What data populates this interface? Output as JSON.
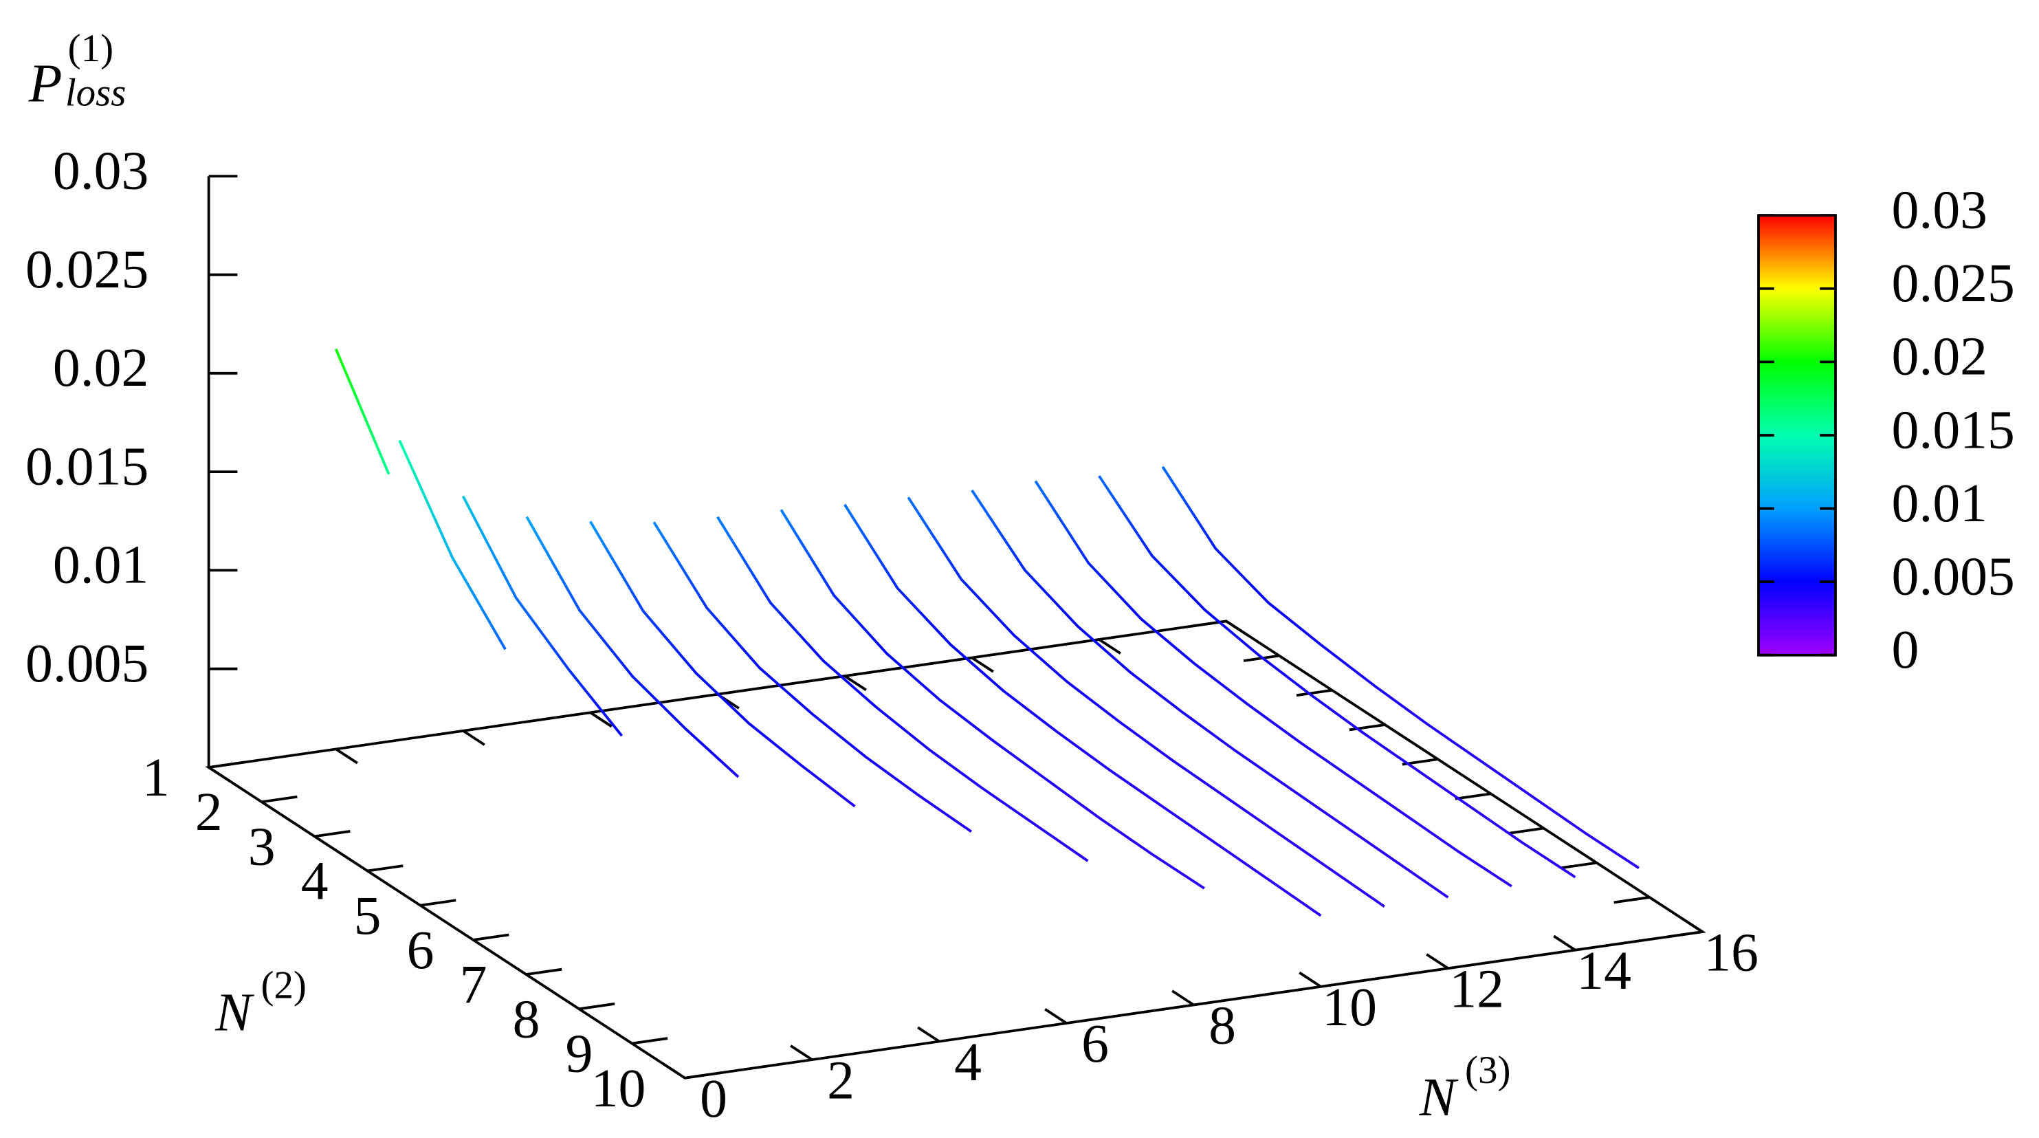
{
  "chart_data": {
    "type": "surface3d",
    "xlabel": {
      "text": "N",
      "sup": "(3)"
    },
    "ylabel": {
      "text": "N",
      "sup": "(2)"
    },
    "zlabel": {
      "text": "P",
      "sub": "loss",
      "sup": "(1)"
    },
    "xlim": [
      0,
      16
    ],
    "xticks": [
      0,
      2,
      4,
      6,
      8,
      10,
      12,
      14,
      16
    ],
    "ylim": [
      1,
      10
    ],
    "yticks": [
      1,
      2,
      3,
      4,
      5,
      6,
      7,
      8,
      9,
      10
    ],
    "zlim": [
      0,
      0.03
    ],
    "zticks": [
      0.005,
      0.01,
      0.015,
      0.02,
      0.025,
      0.03
    ],
    "cblim": [
      0,
      0.03
    ],
    "cbticks": [
      0,
      0.005,
      0.01,
      0.015,
      0.02,
      0.025,
      0.03
    ],
    "palette": [
      "#a000ff",
      "#0000ff",
      "#00a0ff",
      "#00ffb0",
      "#00ff00",
      "#ffff00",
      "#ff0000"
    ],
    "series": [
      {
        "x": 2,
        "y": [
          1,
          2
        ],
        "values": [
          0.0203,
          0.0157
        ]
      },
      {
        "x": 3,
        "y": [
          1,
          2,
          3
        ],
        "values": [
          0.0152,
          0.011,
          0.0081
        ]
      },
      {
        "x": 4,
        "y": [
          1,
          2,
          3,
          4
        ],
        "values": [
          0.0119,
          0.0085,
          0.0066,
          0.005
        ]
      },
      {
        "x": 5,
        "y": [
          1,
          2,
          3,
          4,
          5
        ],
        "values": [
          0.0104,
          0.0074,
          0.0058,
          0.0049,
          0.0042
        ]
      },
      {
        "x": 6,
        "y": [
          1,
          2,
          3,
          4,
          5,
          6
        ],
        "values": [
          0.0097,
          0.0069,
          0.0055,
          0.0047,
          0.0043,
          0.004
        ]
      },
      {
        "x": 7,
        "y": [
          1,
          2,
          3,
          4,
          5,
          6,
          7
        ],
        "values": [
          0.0092,
          0.0066,
          0.0053,
          0.0047,
          0.0043,
          0.0041,
          0.004
        ]
      },
      {
        "x": 8,
        "y": [
          1,
          2,
          3,
          4,
          5,
          6,
          7,
          8
        ],
        "values": [
          0.009,
          0.0064,
          0.0052,
          0.0046,
          0.0042,
          0.004,
          0.0039,
          0.0038
        ]
      },
      {
        "x": 9,
        "y": [
          1,
          2,
          3,
          4,
          5,
          6,
          7,
          8,
          9
        ],
        "values": [
          0.0089,
          0.0063,
          0.0051,
          0.0045,
          0.0042,
          0.004,
          0.0038,
          0.0037,
          0.0037
        ]
      },
      {
        "x": 10,
        "y": [
          1,
          2,
          3,
          4,
          5,
          6,
          7,
          8,
          9,
          10
        ],
        "values": [
          0.0087,
          0.0062,
          0.0051,
          0.0045,
          0.0042,
          0.004,
          0.0039,
          0.0038,
          0.0037,
          0.0036
        ]
      },
      {
        "x": 11,
        "y": [
          1,
          2,
          3,
          4,
          5,
          6,
          7,
          8,
          9,
          10
        ],
        "values": [
          0.0086,
          0.0062,
          0.0051,
          0.0045,
          0.0042,
          0.004,
          0.0039,
          0.0038,
          0.0037,
          0.0036
        ]
      },
      {
        "x": 12,
        "y": [
          1,
          2,
          3,
          4,
          5,
          6,
          7,
          8,
          9,
          10
        ],
        "values": [
          0.0085,
          0.0062,
          0.0051,
          0.0045,
          0.0042,
          0.004,
          0.0039,
          0.0038,
          0.0037,
          0.0036
        ]
      },
      {
        "x": 13,
        "y": [
          1,
          2,
          3,
          4,
          5,
          6,
          7,
          8,
          9,
          10
        ],
        "values": [
          0.0085,
          0.0061,
          0.005,
          0.0045,
          0.0042,
          0.004,
          0.0039,
          0.0038,
          0.0037,
          0.0037
        ]
      },
      {
        "x": 14,
        "y": [
          1,
          2,
          3,
          4,
          5,
          6,
          7,
          8,
          9,
          10
        ],
        "values": [
          0.0083,
          0.006,
          0.005,
          0.0045,
          0.0042,
          0.004,
          0.0039,
          0.0038,
          0.0037,
          0.0037
        ]
      },
      {
        "x": 15,
        "y": [
          1,
          2,
          3,
          4,
          5,
          6,
          7,
          8,
          9,
          10
        ],
        "values": [
          0.0083,
          0.0059,
          0.0049,
          0.0045,
          0.0042,
          0.004,
          0.0039,
          0.0038,
          0.0037,
          0.0037
        ]
      }
    ]
  }
}
